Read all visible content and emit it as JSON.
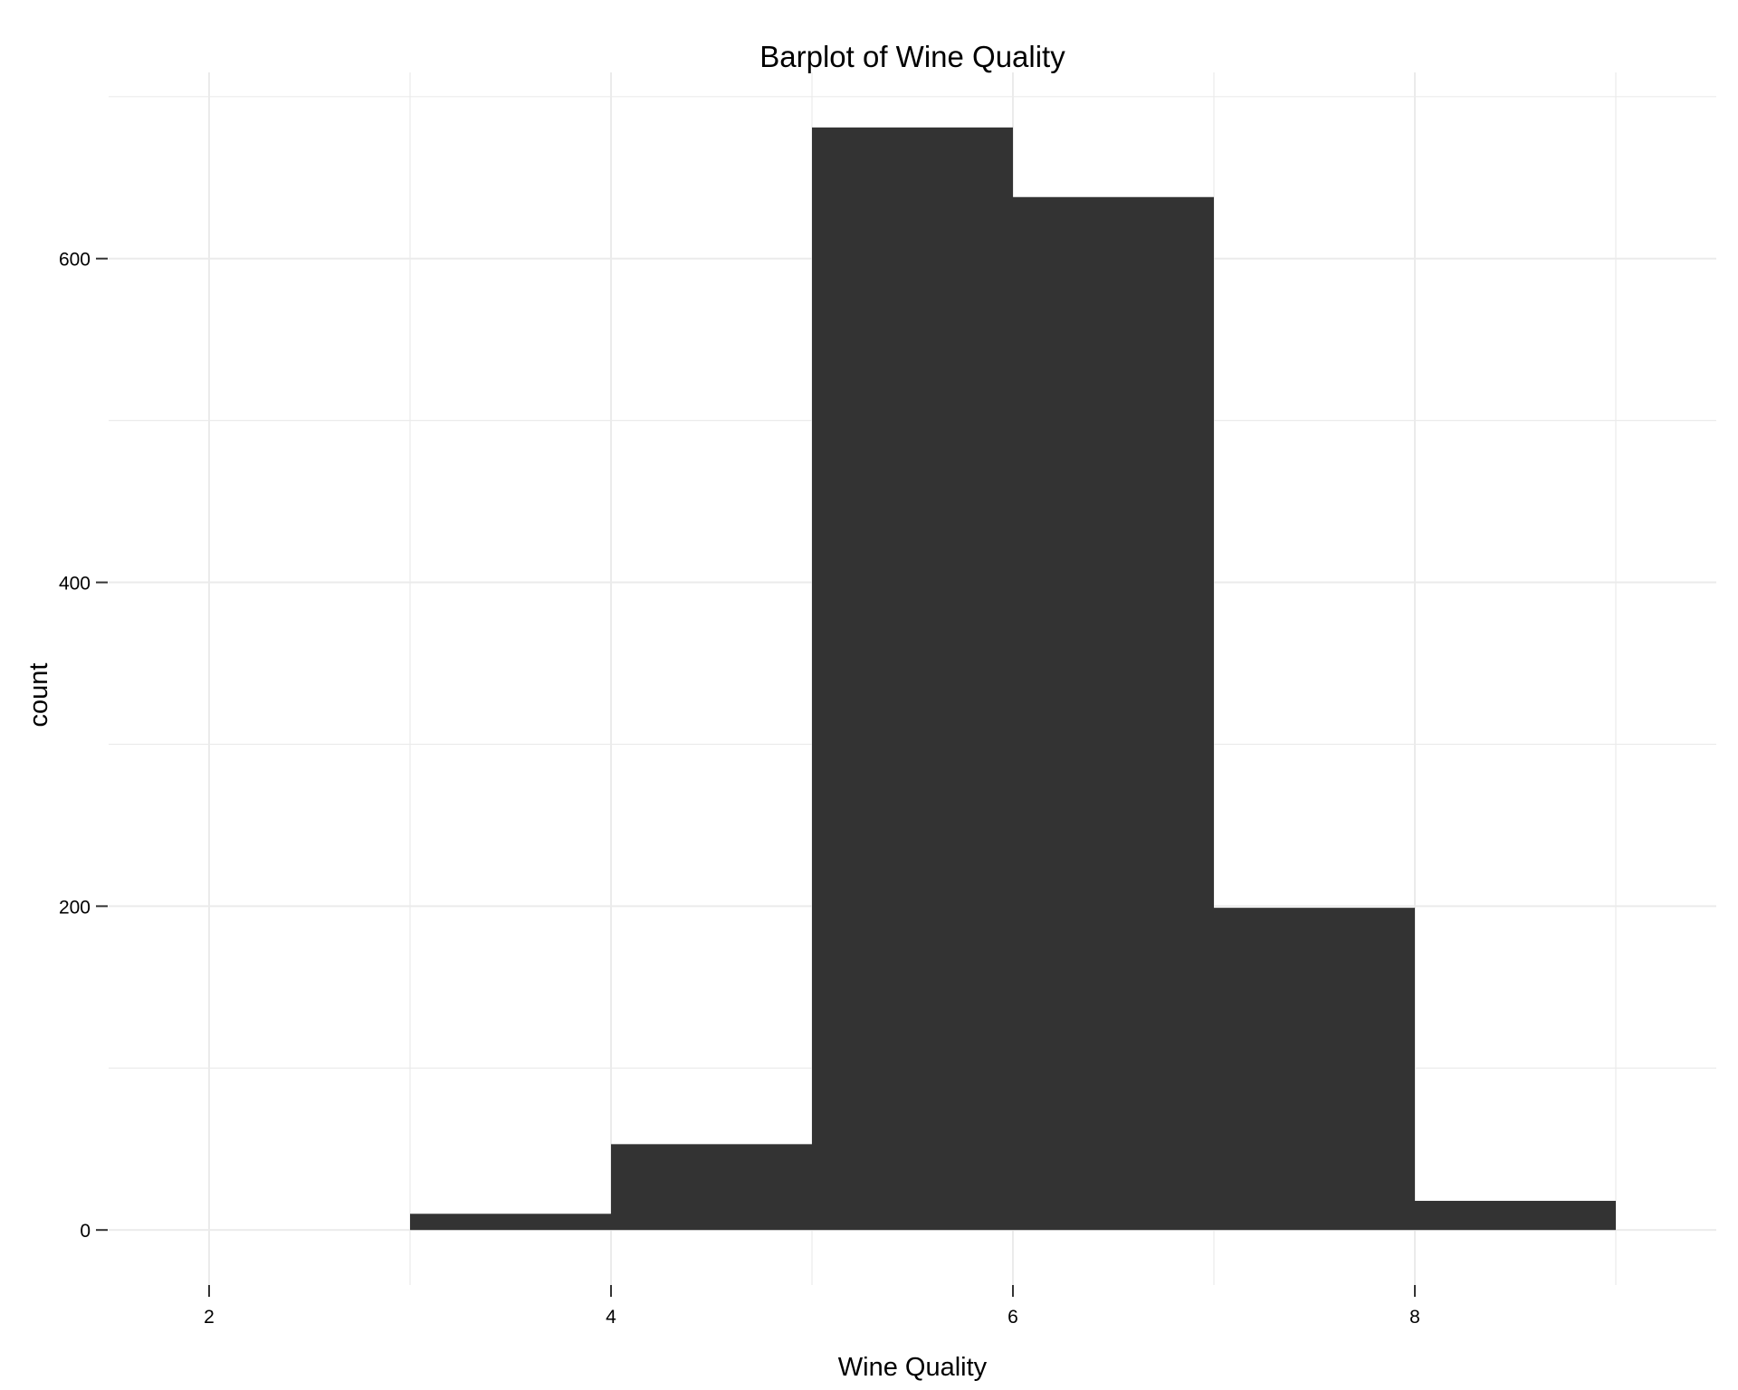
{
  "chart_data": {
    "type": "bar",
    "title": "Barplot of Wine Quality",
    "xlabel": "Wine Quality",
    "ylabel": "count",
    "bins": [
      {
        "x0": 3,
        "x1": 4,
        "count": 10
      },
      {
        "x0": 4,
        "x1": 5,
        "count": 53
      },
      {
        "x0": 5,
        "x1": 6,
        "count": 681
      },
      {
        "x0": 6,
        "x1": 7,
        "count": 638
      },
      {
        "x0": 7,
        "x1": 8,
        "count": 199
      },
      {
        "x0": 8,
        "x1": 9,
        "count": 18
      }
    ],
    "xlim": [
      1.5,
      9.5
    ],
    "ylim": [
      -34,
      715
    ],
    "x_ticks": [
      2,
      4,
      6,
      8
    ],
    "x_tick_labels": [
      "2",
      "4",
      "6",
      "8"
    ],
    "y_ticks": [
      0,
      200,
      400,
      600
    ],
    "y_tick_labels": [
      "0",
      "200",
      "400",
      "600"
    ],
    "x_minor_gridlines": [
      3,
      5,
      7,
      9
    ],
    "y_minor_gridlines": [
      100,
      300,
      500,
      700
    ],
    "grid": true,
    "legend": "none",
    "colors": {
      "bar_fill": "#333333",
      "gridline": "#EBEBEB",
      "tick_mark": "#333333",
      "background": "#FFFFFF"
    }
  }
}
